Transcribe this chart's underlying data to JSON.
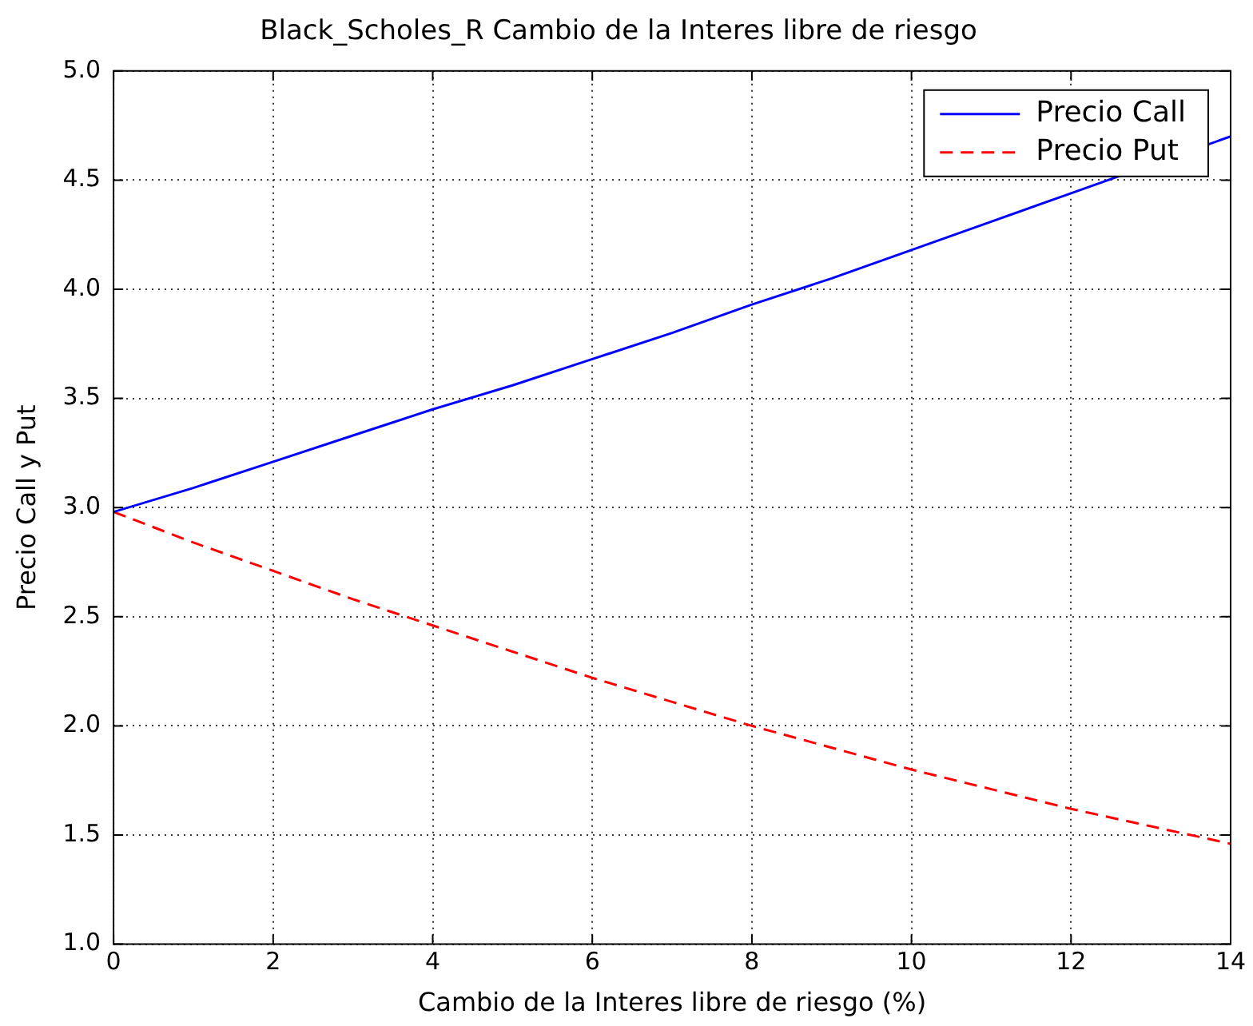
{
  "chart_data": {
    "type": "line",
    "title": "Black_Scholes_R Cambio de la Interes libre de riesgo",
    "xlabel": "Cambio de la Interes libre de riesgo (%)",
    "ylabel": "Precio Call y Put",
    "x": [
      0,
      1,
      2,
      3,
      4,
      5,
      6,
      7,
      8,
      9,
      10,
      11,
      12,
      13,
      14
    ],
    "series": [
      {
        "name": "Precio Call",
        "color": "#0000ff",
        "line_style": "solid",
        "values": [
          2.98,
          3.09,
          3.21,
          3.33,
          3.45,
          3.56,
          3.68,
          3.8,
          3.93,
          4.05,
          4.18,
          4.31,
          4.44,
          null,
          4.7
        ]
      },
      {
        "name": "Precio Put",
        "color": "#ff0000",
        "line_style": "dashed",
        "values": [
          2.98,
          2.84,
          2.71,
          2.58,
          2.46,
          2.34,
          2.22,
          2.11,
          2.0,
          1.9,
          1.8,
          1.71,
          1.62,
          1.54,
          1.46
        ]
      }
    ],
    "xlim": [
      0,
      14
    ],
    "xticks": [
      0,
      2,
      4,
      6,
      8,
      10,
      12,
      14
    ],
    "ylim": [
      1.0,
      5.0
    ],
    "yticks": [
      {
        "value": 1.0,
        "label": "1.0"
      },
      {
        "value": 1.5,
        "label": "1.5"
      },
      {
        "value": 2.0,
        "label": "2.0"
      },
      {
        "value": 2.5,
        "label": "2.5"
      },
      {
        "value": 3.0,
        "label": "3.0"
      },
      {
        "value": 3.5,
        "label": "3.5"
      },
      {
        "value": 4.0,
        "label": "4.0"
      },
      {
        "value": 4.5,
        "label": "4.5"
      },
      {
        "value": 5.0,
        "label": "5.0"
      }
    ],
    "grid": true,
    "legend": "top right",
    "marker": "none"
  }
}
